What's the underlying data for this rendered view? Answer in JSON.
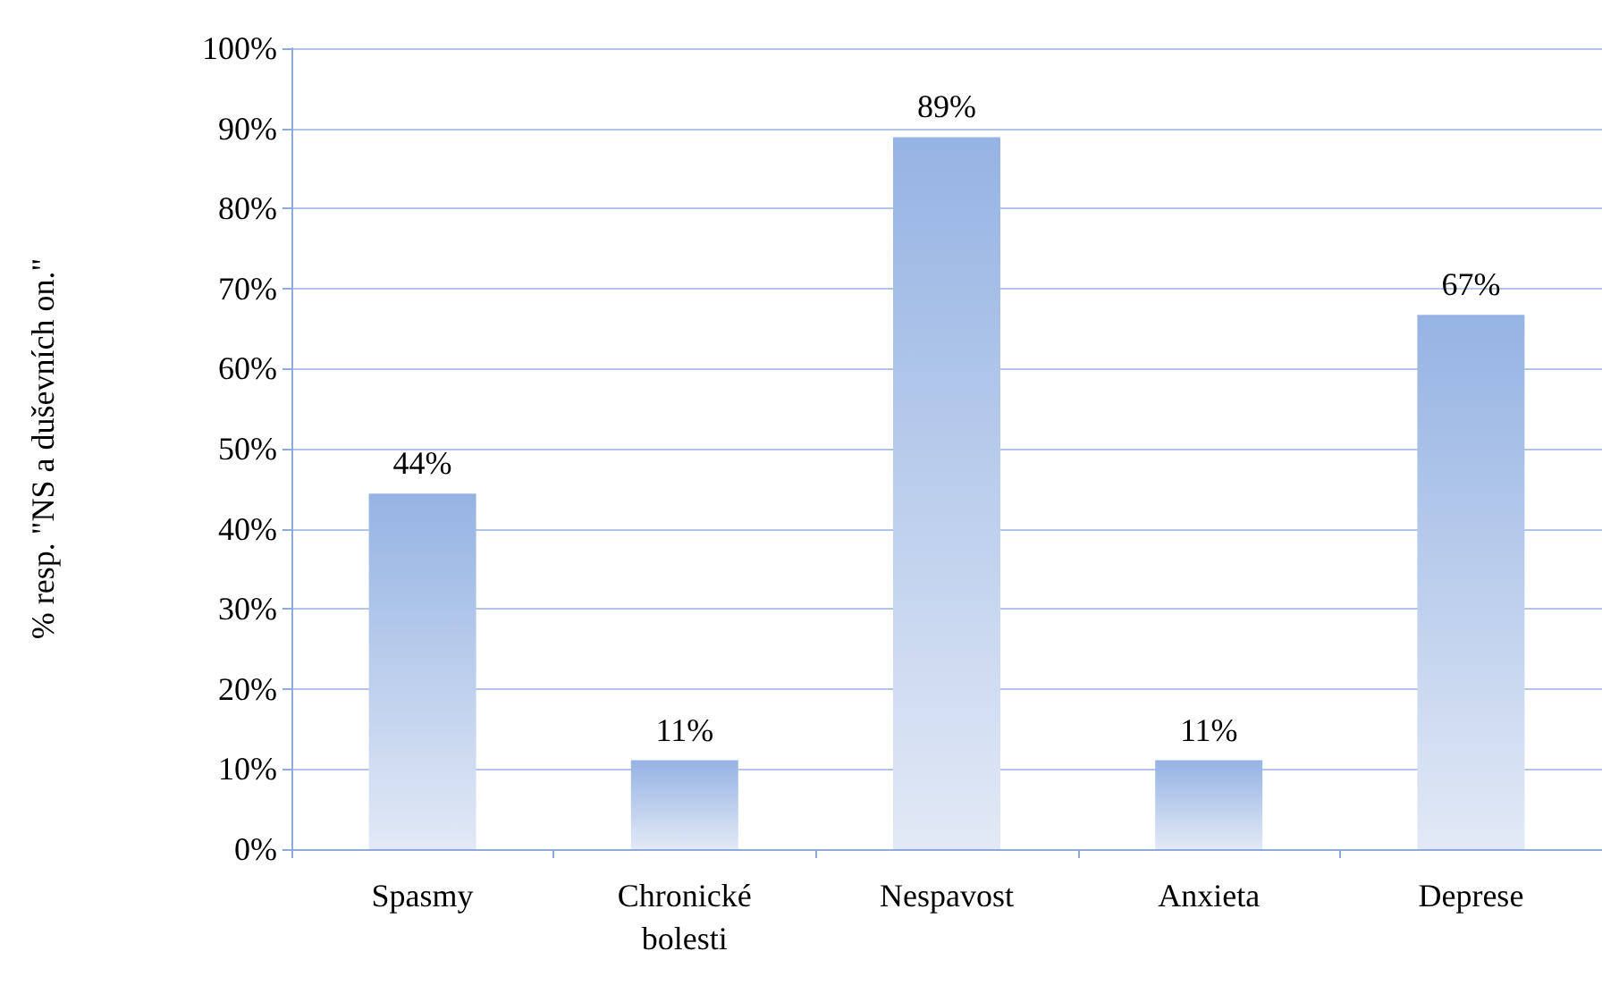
{
  "chart_data": {
    "type": "bar",
    "ylabel": "% resp. \"NS a duševních on.\"",
    "categories": [
      "Spasmy",
      "Chronické\nbolesti",
      "Nespavost",
      "Anxieta",
      "Deprese"
    ],
    "values": [
      44.4,
      11.1,
      88.9,
      11.1,
      66.7
    ],
    "value_labels": [
      "44%",
      "11%",
      "89%",
      "11%",
      "67%"
    ],
    "color": "#95b3e3",
    "ylim": [
      0,
      100
    ],
    "yticks": [
      {
        "value": 0,
        "label": "0%"
      },
      {
        "value": 10,
        "label": "10%"
      },
      {
        "value": 20,
        "label": "20%"
      },
      {
        "value": 30,
        "label": "30%"
      },
      {
        "value": 40,
        "label": "40%"
      },
      {
        "value": 50,
        "label": "50%"
      },
      {
        "value": 60,
        "label": "60%"
      },
      {
        "value": 70,
        "label": "70%"
      },
      {
        "value": 80,
        "label": "80%"
      },
      {
        "value": 90,
        "label": "90%"
      },
      {
        "value": 100,
        "label": "100%"
      }
    ],
    "grid": "y"
  }
}
